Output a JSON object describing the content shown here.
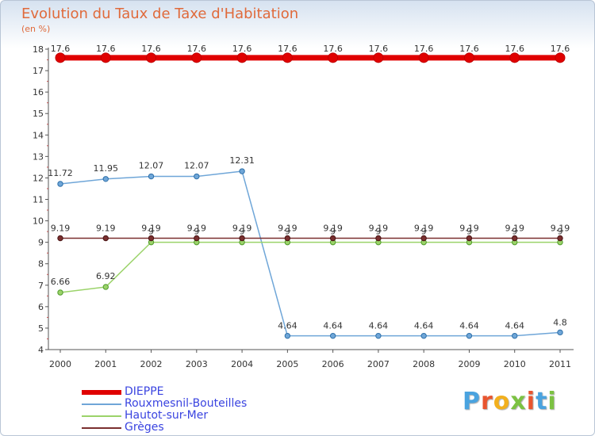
{
  "title": "Evolution du Taux de Taxe d'Habitation",
  "subtitle": "(en %)",
  "chart_data": {
    "type": "line",
    "title": "Evolution du Taux de Taxe d'Habitation",
    "ylabel": "(en %)",
    "xlabel": "",
    "x": [
      "2000",
      "2001",
      "2002",
      "2003",
      "2004",
      "2005",
      "2006",
      "2007",
      "2008",
      "2009",
      "2010",
      "2011"
    ],
    "ylim": [
      4,
      18
    ],
    "yticks": [
      "4",
      "5",
      "6",
      "7",
      "8",
      "9",
      "10",
      "11",
      "12",
      "13",
      "14",
      "15",
      "16",
      "17",
      "18"
    ],
    "grid": false,
    "legend": "bottom-left",
    "series": [
      {
        "name": "DIEPPE",
        "color": "#e00000",
        "values": [
          17.6,
          17.6,
          17.6,
          17.6,
          17.6,
          17.6,
          17.6,
          17.6,
          17.6,
          17.6,
          17.6,
          17.6
        ],
        "labels": [
          "17.6",
          "17.6",
          "17.6",
          "17.6",
          "17.6",
          "17.6",
          "17.6",
          "17.6",
          "17.6",
          "17.6",
          "17.6",
          "17.6"
        ]
      },
      {
        "name": "Rouxmesnil-Bouteilles",
        "color": "#6fa6d8",
        "values": [
          11.72,
          11.95,
          12.07,
          12.07,
          12.31,
          4.64,
          4.64,
          4.64,
          4.64,
          4.64,
          4.64,
          4.8
        ],
        "labels": [
          "11.72",
          "11.95",
          "12.07",
          "12.07",
          "12.31",
          "4.64",
          "4.64",
          "4.64",
          "4.64",
          "4.64",
          "4.64",
          "4.8"
        ]
      },
      {
        "name": "Hautot-sur-Mer",
        "color": "#9bd36a",
        "values": [
          6.66,
          6.92,
          9,
          9,
          9,
          9,
          9,
          9,
          9,
          9,
          9,
          9
        ],
        "labels": [
          "6.66",
          "6.92",
          "9",
          "9",
          "9",
          "9",
          "9",
          "9",
          "9",
          "9",
          "9",
          "9"
        ]
      },
      {
        "name": "Grèges",
        "color": "#7a2f2f",
        "values": [
          9.19,
          9.19,
          9.19,
          9.19,
          9.19,
          9.19,
          9.19,
          9.19,
          9.19,
          9.19,
          9.19,
          9.19
        ],
        "labels": [
          "9.19",
          "9.19",
          "9.19",
          "9.19",
          "9.19",
          "9.19",
          "9.19",
          "9.19",
          "9.19",
          "9.19",
          "9.19",
          "9.19"
        ]
      }
    ]
  },
  "legend": {
    "items": [
      {
        "label": "DIEPPE",
        "color": "#e00000"
      },
      {
        "label": "Rouxmesnil-Bouteilles",
        "color": "#6fa6d8"
      },
      {
        "label": "Hautot-sur-Mer",
        "color": "#9bd36a"
      },
      {
        "label": "Grèges",
        "color": "#7a2f2f"
      }
    ]
  },
  "logo": {
    "letters": [
      "P",
      "r",
      "o",
      "x",
      "i",
      "t",
      "i"
    ],
    "colors": [
      "#4aa3df",
      "#e8552f",
      "#f2b01e",
      "#7cc242",
      "#e8552f",
      "#4aa3df",
      "#7cc242"
    ]
  }
}
